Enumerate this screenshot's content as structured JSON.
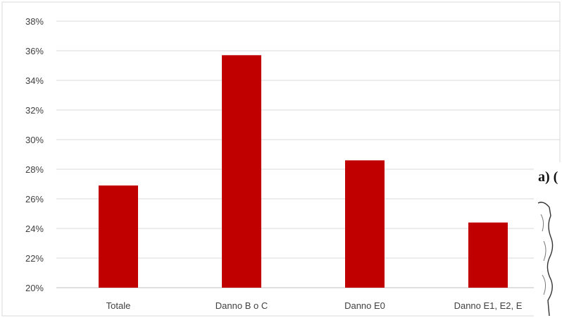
{
  "chart_data": {
    "type": "bar",
    "categories": [
      "Totale",
      "Danno B o C",
      "Danno E0",
      "Danno E1, E2, E"
    ],
    "values": [
      26.9,
      35.7,
      28.6,
      24.4
    ],
    "ylim": [
      20,
      38
    ],
    "yticks": [
      "20%",
      "22%",
      "24%",
      "26%",
      "28%",
      "30%",
      "32%",
      "34%",
      "36%",
      "38%"
    ],
    "grid": true,
    "bar_color": "#c00000",
    "grid_color": "#d9d9d9",
    "title": "",
    "xlabel": "",
    "ylabel": ""
  },
  "overlay": {
    "label": "a) ("
  }
}
